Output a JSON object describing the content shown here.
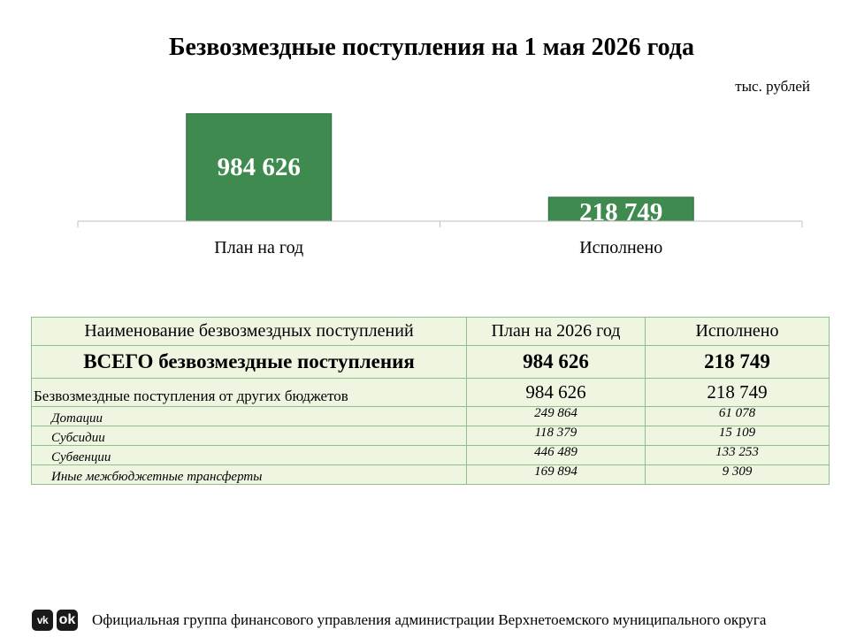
{
  "chart_data": {
    "type": "bar",
    "title": "Безвозмездные поступления  на 1 мая 2026 года",
    "units": "тыс. рублей",
    "categories": [
      "План на год",
      "Исполнено"
    ],
    "values": [
      984626,
      218749
    ],
    "value_labels": [
      "984 626",
      "218 749"
    ],
    "ylim": [
      0,
      1000000
    ],
    "bar_color": "#3f8a4f",
    "grid": false
  },
  "table": {
    "headers": [
      "Наименование безвозмездных поступлений",
      "План на 2026 год",
      "Исполнено"
    ],
    "total": {
      "name": "ВСЕГО безвозмездные поступления",
      "plan": "984 626",
      "done": "218 749"
    },
    "subtotal": {
      "name": "Безвозмездные поступления от других бюджетов",
      "plan": "984 626",
      "done": "218 749"
    },
    "items": [
      {
        "name": "Дотации",
        "plan": "249 864",
        "done": "61 078"
      },
      {
        "name": "Субсидии",
        "plan": "118 379",
        "done": "15 109"
      },
      {
        "name": "Субвенции",
        "plan": "446 489",
        "done": "133 253"
      },
      {
        "name": "Иные межбюджетные трансферты",
        "plan": "169 894",
        "done": "9 309"
      }
    ]
  },
  "footer": {
    "vk_icon_text": "vk",
    "ok_icon_text": "ok",
    "text": "Официальная группа финансового управления администрации Верхнетоемского муниципального округа"
  },
  "colors": {
    "table_bg": "#eef6e2",
    "table_border": "#8fbf8a"
  }
}
